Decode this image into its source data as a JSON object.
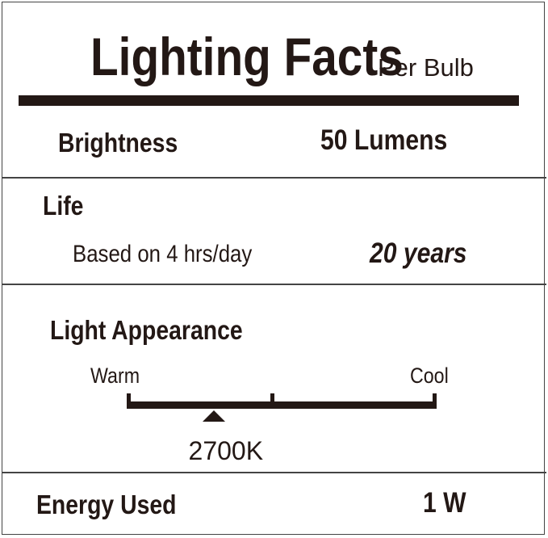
{
  "header": {
    "title": "Lighting Facts",
    "per": "Per Bulb"
  },
  "brightness": {
    "label": "Brightness",
    "value": "50 Lumens"
  },
  "life": {
    "label": "Life",
    "basis": "Based on 4 hrs/day",
    "value": "20 years"
  },
  "appearance": {
    "label": "Light Appearance",
    "warm": "Warm",
    "cool": "Cool",
    "value": "2700K",
    "position_fraction": 0.28
  },
  "energy": {
    "label": "Energy Used",
    "value": "1 W"
  },
  "colors": {
    "ink": "#231815",
    "border": "#444444"
  }
}
